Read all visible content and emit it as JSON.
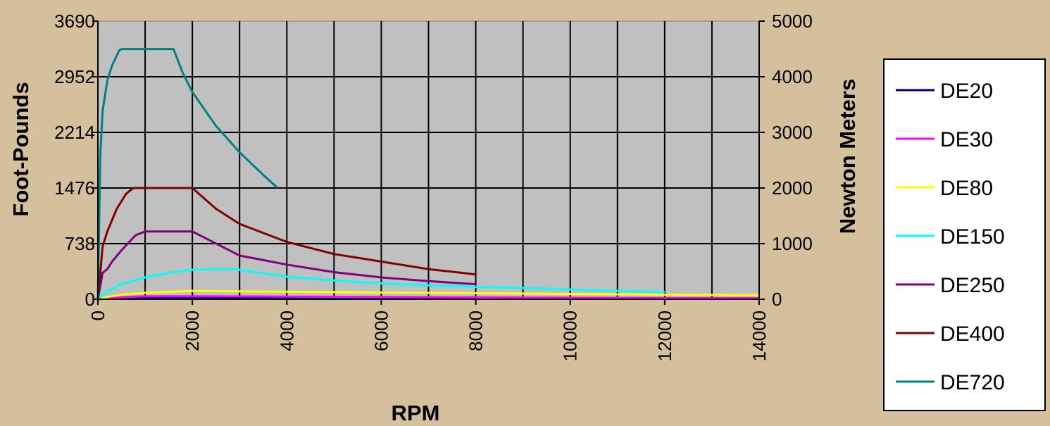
{
  "chart_data": {
    "type": "line",
    "title": "",
    "xlabel": "RPM",
    "ylabel": "Foot-Pounds",
    "y2label": "Newton Meters",
    "xlim": [
      0,
      14000
    ],
    "ylim": [
      0,
      3690
    ],
    "y2lim": [
      0,
      5000
    ],
    "x_ticks": [
      "0",
      "2000",
      "4000",
      "6000",
      "8000",
      "10000",
      "12000",
      "14000"
    ],
    "y_ticks": [
      "0",
      "738",
      "1476",
      "2214",
      "2952",
      "3690"
    ],
    "y2_ticks": [
      "0",
      "1000",
      "2000",
      "3000",
      "4000",
      "5000"
    ],
    "plot_background": "#c0c0c0",
    "page_background": "#d4c09c",
    "grid": true,
    "legend_position": "right",
    "series": [
      {
        "name": "DE20",
        "color": "#000080",
        "x": [
          0,
          100,
          300,
          600,
          2000,
          5000,
          8000
        ],
        "y": [
          0,
          8,
          15,
          22,
          22,
          15,
          11
        ]
      },
      {
        "name": "DE30",
        "color": "#ff00ff",
        "x": [
          0,
          100,
          300,
          600,
          1000,
          2000,
          4000,
          6000,
          8000,
          10000,
          12000,
          14000
        ],
        "y": [
          0,
          10,
          20,
          30,
          40,
          40,
          35,
          30,
          25,
          20,
          16,
          14
        ]
      },
      {
        "name": "DE80",
        "color": "#ffff00",
        "x": [
          0,
          100,
          300,
          600,
          1000,
          2000,
          4000,
          6000,
          8000,
          10000,
          12000,
          14000
        ],
        "y": [
          0,
          20,
          40,
          65,
          85,
          110,
          100,
          90,
          80,
          70,
          60,
          55
        ]
      },
      {
        "name": "DE150",
        "color": "#00ffff",
        "x": [
          0,
          200,
          500,
          1000,
          1500,
          2000,
          2500,
          2900,
          4000,
          5000,
          6000,
          7000,
          8000,
          9000,
          10000,
          11000,
          12000
        ],
        "y": [
          0,
          100,
          200,
          290,
          350,
          390,
          400,
          400,
          300,
          250,
          210,
          185,
          165,
          150,
          130,
          110,
          95
        ]
      },
      {
        "name": "DE250",
        "color": "#800080",
        "x": [
          0,
          100,
          200,
          300,
          500,
          800,
          1000,
          1500,
          2000,
          3000,
          4000,
          5000,
          6000,
          7000,
          8000
        ],
        "y": [
          0,
          350,
          400,
          500,
          650,
          850,
          900,
          900,
          900,
          580,
          460,
          360,
          290,
          240,
          200
        ]
      },
      {
        "name": "DE400",
        "color": "#800000",
        "x": [
          0,
          100,
          200,
          400,
          600,
          750,
          1000,
          1500,
          2000,
          2500,
          3000,
          4000,
          5000,
          6000,
          7000,
          8000
        ],
        "y": [
          0,
          700,
          900,
          1200,
          1400,
          1476,
          1476,
          1476,
          1476,
          1200,
          1000,
          760,
          600,
          500,
          400,
          330
        ]
      },
      {
        "name": "DE720",
        "color": "#008080",
        "x": [
          0,
          50,
          100,
          200,
          300,
          450,
          500,
          800,
          1200,
          1600,
          1800,
          2000,
          2500,
          3000,
          3500,
          3800
        ],
        "y": [
          0,
          1900,
          2500,
          2900,
          3100,
          3300,
          3320,
          3320,
          3320,
          3320,
          3000,
          2750,
          2300,
          1950,
          1650,
          1480
        ]
      }
    ]
  }
}
